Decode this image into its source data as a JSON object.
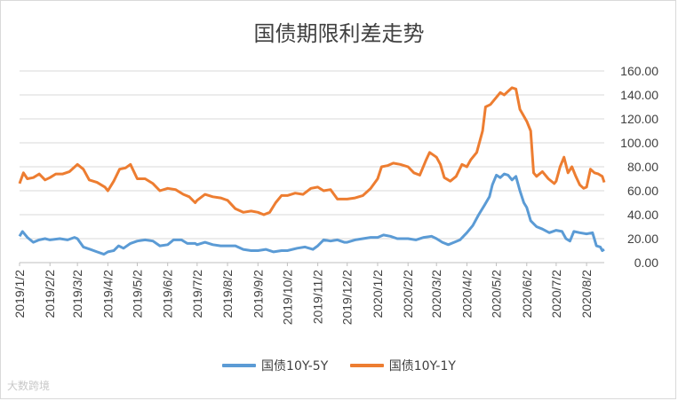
{
  "chart_data": {
    "type": "line",
    "title": "国债期限利差走势",
    "ylim": [
      0,
      160
    ],
    "y_ticks": [
      "0.00",
      "20.00",
      "40.00",
      "60.00",
      "80.00",
      "100.00",
      "120.00",
      "140.00",
      "160.00"
    ],
    "y_axis_side": "right",
    "grid": true,
    "legend": "bottom",
    "x_ticks": [
      "2019/1/2",
      "2019/2/2",
      "2019/3/2",
      "2019/4/2",
      "2019/5/2",
      "2019/6/2",
      "2019/7/2",
      "2019/8/2",
      "2019/9/2",
      "2019/10/2",
      "2019/11/2",
      "2019/12/2",
      "2020/1/2",
      "2020/2/2",
      "2020/3/2",
      "2020/4/2",
      "2020/5/2",
      "2020/6/2",
      "2020/7/2",
      "2020/8/2"
    ],
    "x_range": [
      "2019-01-02",
      "2020-08-20"
    ],
    "series": [
      {
        "name": "国债10Y-5Y",
        "color": "#5b9bd5",
        "points": [
          [
            "2019-01-02",
            22
          ],
          [
            "2019-01-05",
            26
          ],
          [
            "2019-01-10",
            21
          ],
          [
            "2019-01-16",
            17
          ],
          [
            "2019-01-22",
            19
          ],
          [
            "2019-01-28",
            20
          ],
          [
            "2019-02-02",
            19
          ],
          [
            "2019-02-12",
            20
          ],
          [
            "2019-02-20",
            19
          ],
          [
            "2019-02-27",
            21
          ],
          [
            "2019-03-02",
            20
          ],
          [
            "2019-03-08",
            13
          ],
          [
            "2019-03-15",
            11
          ],
          [
            "2019-03-22",
            9
          ],
          [
            "2019-03-29",
            7
          ],
          [
            "2019-04-02",
            9
          ],
          [
            "2019-04-08",
            10
          ],
          [
            "2019-04-13",
            14
          ],
          [
            "2019-04-18",
            12
          ],
          [
            "2019-04-25",
            16
          ],
          [
            "2019-05-02",
            18
          ],
          [
            "2019-05-10",
            19
          ],
          [
            "2019-05-18",
            18
          ],
          [
            "2019-05-25",
            14
          ],
          [
            "2019-06-02",
            15
          ],
          [
            "2019-06-08",
            19
          ],
          [
            "2019-06-16",
            19
          ],
          [
            "2019-06-22",
            16
          ],
          [
            "2019-06-30",
            16
          ],
          [
            "2019-07-02",
            15
          ],
          [
            "2019-07-10",
            17
          ],
          [
            "2019-07-18",
            15
          ],
          [
            "2019-07-26",
            14
          ],
          [
            "2019-08-02",
            14
          ],
          [
            "2019-08-10",
            14
          ],
          [
            "2019-08-18",
            11
          ],
          [
            "2019-08-26",
            10
          ],
          [
            "2019-09-02",
            10
          ],
          [
            "2019-09-10",
            11
          ],
          [
            "2019-09-18",
            9
          ],
          [
            "2019-09-26",
            10
          ],
          [
            "2019-10-02",
            10
          ],
          [
            "2019-10-12",
            12
          ],
          [
            "2019-10-20",
            13
          ],
          [
            "2019-10-28",
            11
          ],
          [
            "2019-11-02",
            14
          ],
          [
            "2019-11-08",
            19
          ],
          [
            "2019-11-15",
            18
          ],
          [
            "2019-11-22",
            19
          ],
          [
            "2019-11-29",
            17
          ],
          [
            "2019-12-02",
            17
          ],
          [
            "2019-12-10",
            19
          ],
          [
            "2019-12-18",
            20
          ],
          [
            "2019-12-26",
            21
          ],
          [
            "2020-01-02",
            21
          ],
          [
            "2020-01-08",
            23
          ],
          [
            "2020-01-15",
            22
          ],
          [
            "2020-01-22",
            20
          ],
          [
            "2020-02-02",
            20
          ],
          [
            "2020-02-10",
            19
          ],
          [
            "2020-02-18",
            21
          ],
          [
            "2020-02-26",
            22
          ],
          [
            "2020-03-02",
            20
          ],
          [
            "2020-03-08",
            17
          ],
          [
            "2020-03-14",
            15
          ],
          [
            "2020-03-20",
            17
          ],
          [
            "2020-03-26",
            19
          ],
          [
            "2020-04-02",
            25
          ],
          [
            "2020-04-08",
            31
          ],
          [
            "2020-04-14",
            40
          ],
          [
            "2020-04-20",
            48
          ],
          [
            "2020-04-25",
            55
          ],
          [
            "2020-04-28",
            65
          ],
          [
            "2020-05-02",
            73
          ],
          [
            "2020-05-06",
            71
          ],
          [
            "2020-05-10",
            74
          ],
          [
            "2020-05-14",
            73
          ],
          [
            "2020-05-18",
            69
          ],
          [
            "2020-05-22",
            72
          ],
          [
            "2020-05-26",
            60
          ],
          [
            "2020-05-30",
            50
          ],
          [
            "2020-06-02",
            46
          ],
          [
            "2020-06-06",
            35
          ],
          [
            "2020-06-12",
            30
          ],
          [
            "2020-06-18",
            28
          ],
          [
            "2020-06-25",
            25
          ],
          [
            "2020-07-02",
            27
          ],
          [
            "2020-07-08",
            26
          ],
          [
            "2020-07-12",
            20
          ],
          [
            "2020-07-16",
            18
          ],
          [
            "2020-07-20",
            26
          ],
          [
            "2020-07-26",
            25
          ],
          [
            "2020-08-02",
            24
          ],
          [
            "2020-08-08",
            25
          ],
          [
            "2020-08-12",
            14
          ],
          [
            "2020-08-16",
            13
          ],
          [
            "2020-08-18",
            10
          ],
          [
            "2020-08-20",
            11
          ]
        ]
      },
      {
        "name": "国债10Y-1Y",
        "color": "#ed7d31",
        "points": [
          [
            "2019-01-02",
            66
          ],
          [
            "2019-01-06",
            75
          ],
          [
            "2019-01-10",
            70
          ],
          [
            "2019-01-16",
            71
          ],
          [
            "2019-01-22",
            74
          ],
          [
            "2019-01-28",
            69
          ],
          [
            "2019-02-02",
            71
          ],
          [
            "2019-02-08",
            74
          ],
          [
            "2019-02-15",
            74
          ],
          [
            "2019-02-22",
            76
          ],
          [
            "2019-03-02",
            82
          ],
          [
            "2019-03-08",
            78
          ],
          [
            "2019-03-14",
            69
          ],
          [
            "2019-03-22",
            67
          ],
          [
            "2019-03-30",
            63
          ],
          [
            "2019-04-02",
            60
          ],
          [
            "2019-04-08",
            68
          ],
          [
            "2019-04-14",
            78
          ],
          [
            "2019-04-20",
            79
          ],
          [
            "2019-04-25",
            82
          ],
          [
            "2019-05-02",
            70
          ],
          [
            "2019-05-10",
            70
          ],
          [
            "2019-05-18",
            66
          ],
          [
            "2019-05-25",
            60
          ],
          [
            "2019-06-02",
            62
          ],
          [
            "2019-06-10",
            61
          ],
          [
            "2019-06-18",
            57
          ],
          [
            "2019-06-24",
            55
          ],
          [
            "2019-06-30",
            50
          ],
          [
            "2019-07-02",
            52
          ],
          [
            "2019-07-10",
            57
          ],
          [
            "2019-07-18",
            55
          ],
          [
            "2019-07-26",
            54
          ],
          [
            "2019-08-02",
            52
          ],
          [
            "2019-08-10",
            45
          ],
          [
            "2019-08-18",
            42
          ],
          [
            "2019-08-26",
            43
          ],
          [
            "2019-09-02",
            42
          ],
          [
            "2019-09-08",
            40
          ],
          [
            "2019-09-14",
            42
          ],
          [
            "2019-09-20",
            50
          ],
          [
            "2019-09-26",
            56
          ],
          [
            "2019-10-02",
            56
          ],
          [
            "2019-10-10",
            58
          ],
          [
            "2019-10-18",
            57
          ],
          [
            "2019-10-26",
            62
          ],
          [
            "2019-11-02",
            63
          ],
          [
            "2019-11-08",
            60
          ],
          [
            "2019-11-15",
            61
          ],
          [
            "2019-11-22",
            53
          ],
          [
            "2019-11-29",
            53
          ],
          [
            "2019-12-02",
            53
          ],
          [
            "2019-12-10",
            54
          ],
          [
            "2019-12-18",
            56
          ],
          [
            "2019-12-26",
            62
          ],
          [
            "2020-01-02",
            70
          ],
          [
            "2020-01-06",
            80
          ],
          [
            "2020-01-12",
            81
          ],
          [
            "2020-01-18",
            83
          ],
          [
            "2020-01-25",
            82
          ],
          [
            "2020-02-02",
            80
          ],
          [
            "2020-02-08",
            75
          ],
          [
            "2020-02-14",
            73
          ],
          [
            "2020-02-20",
            85
          ],
          [
            "2020-02-24",
            92
          ],
          [
            "2020-03-02",
            88
          ],
          [
            "2020-03-06",
            82
          ],
          [
            "2020-03-10",
            71
          ],
          [
            "2020-03-16",
            68
          ],
          [
            "2020-03-22",
            72
          ],
          [
            "2020-03-28",
            82
          ],
          [
            "2020-04-02",
            80
          ],
          [
            "2020-04-06",
            86
          ],
          [
            "2020-04-12",
            92
          ],
          [
            "2020-04-18",
            110
          ],
          [
            "2020-04-21",
            130
          ],
          [
            "2020-04-26",
            132
          ],
          [
            "2020-05-02",
            138
          ],
          [
            "2020-05-06",
            142
          ],
          [
            "2020-05-10",
            140
          ],
          [
            "2020-05-14",
            143
          ],
          [
            "2020-05-18",
            146
          ],
          [
            "2020-05-22",
            145
          ],
          [
            "2020-05-26",
            128
          ],
          [
            "2020-06-02",
            118
          ],
          [
            "2020-06-06",
            110
          ],
          [
            "2020-06-09",
            75
          ],
          [
            "2020-06-12",
            72
          ],
          [
            "2020-06-18",
            76
          ],
          [
            "2020-06-24",
            70
          ],
          [
            "2020-06-30",
            66
          ],
          [
            "2020-07-02",
            68
          ],
          [
            "2020-07-06",
            80
          ],
          [
            "2020-07-10",
            88
          ],
          [
            "2020-07-14",
            75
          ],
          [
            "2020-07-18",
            80
          ],
          [
            "2020-07-22",
            72
          ],
          [
            "2020-07-26",
            65
          ],
          [
            "2020-07-30",
            62
          ],
          [
            "2020-08-02",
            63
          ],
          [
            "2020-08-06",
            78
          ],
          [
            "2020-08-10",
            75
          ],
          [
            "2020-08-14",
            74
          ],
          [
            "2020-08-18",
            72
          ],
          [
            "2020-08-20",
            67
          ]
        ]
      }
    ]
  },
  "watermark": "大数跨境"
}
